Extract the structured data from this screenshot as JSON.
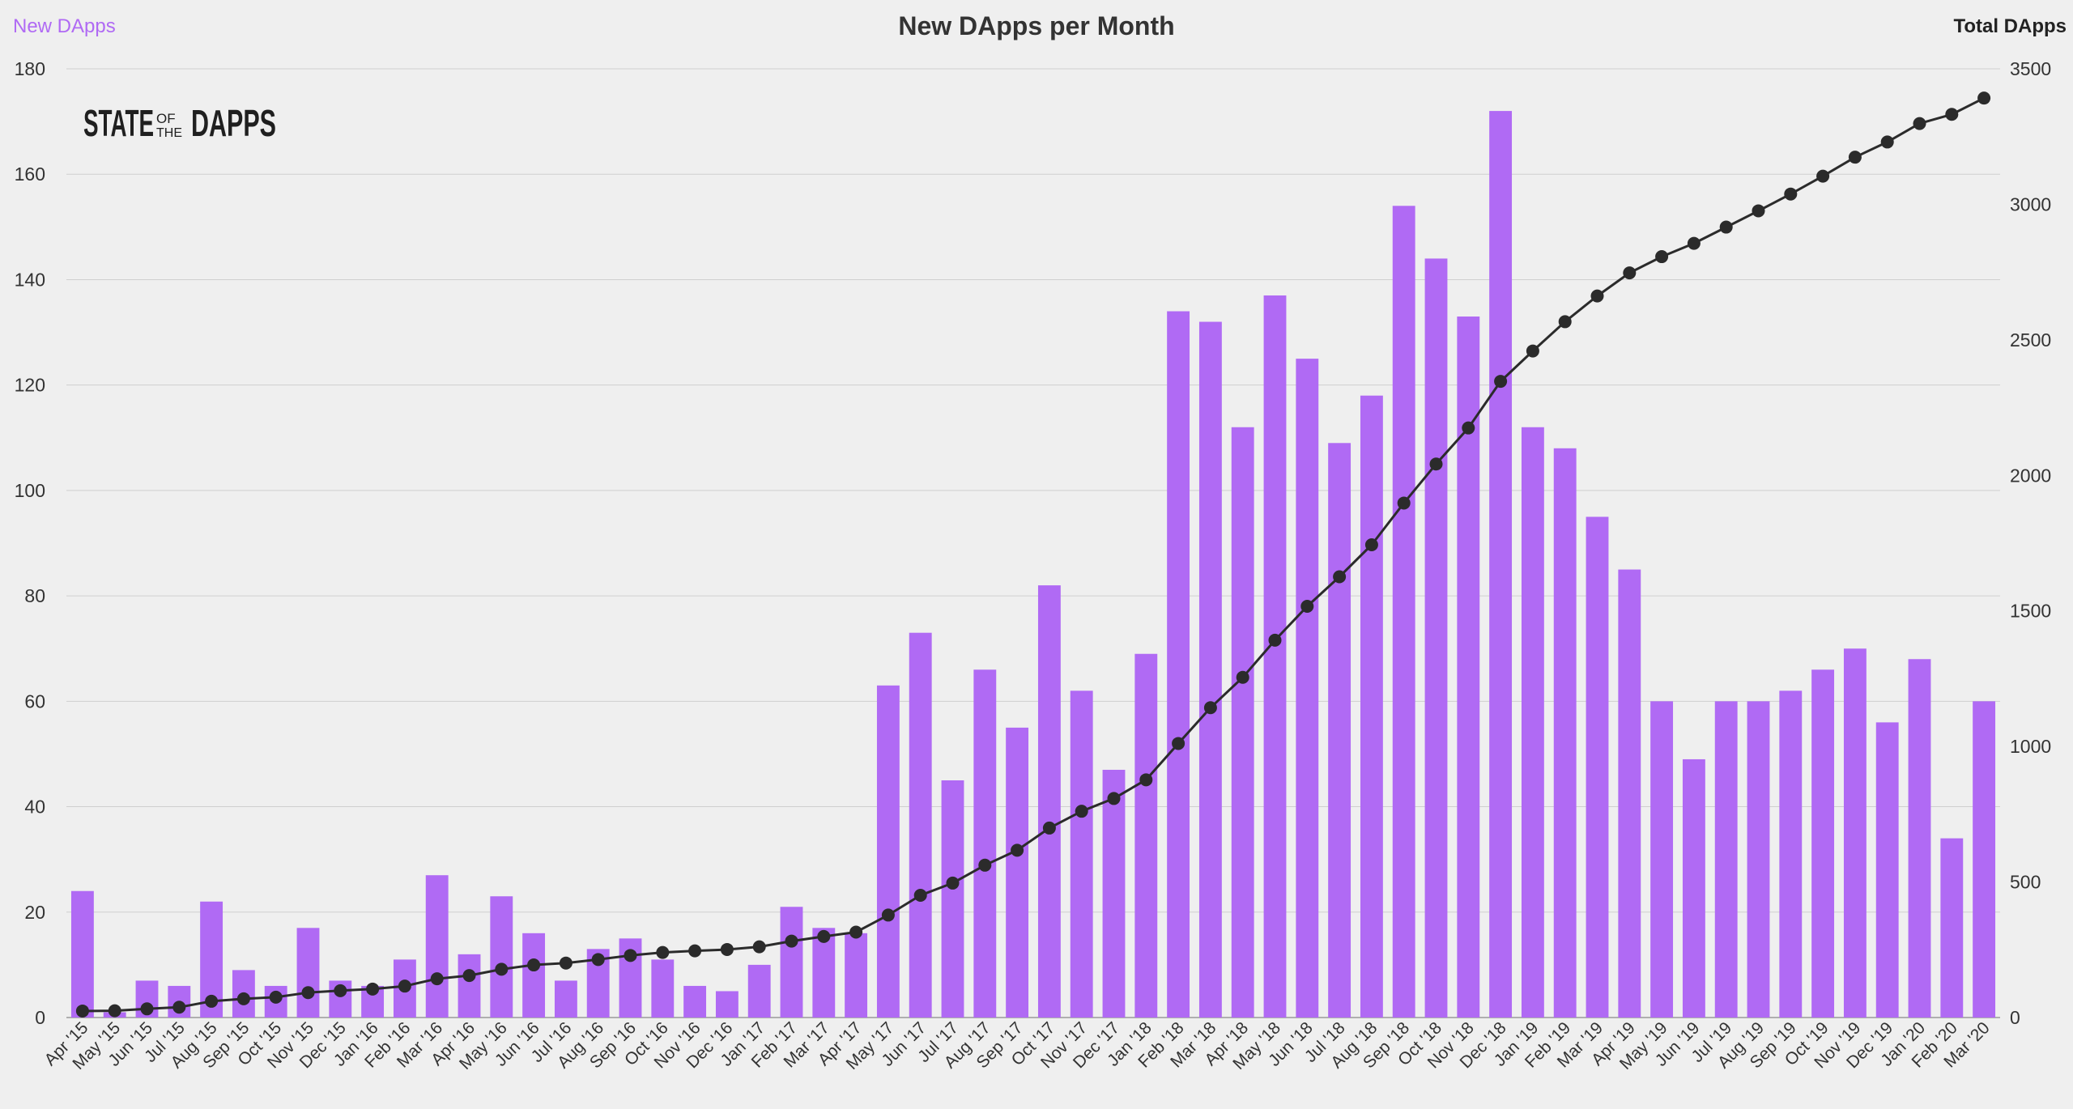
{
  "chart_data": {
    "type": "bar+line",
    "title": "New DApps per Month",
    "left_axis_label": "New DApps",
    "right_axis_label": "Total DApps",
    "logo": "STATE OF THE DAPPS",
    "categories": [
      "Apr '15",
      "May '15",
      "Jun '15",
      "Jul '15",
      "Aug '15",
      "Sep '15",
      "Oct '15",
      "Nov '15",
      "Dec '15",
      "Jan '16",
      "Feb '16",
      "Mar '16",
      "Apr '16",
      "May '16",
      "Jun '16",
      "Jul '16",
      "Aug '16",
      "Sep '16",
      "Oct '16",
      "Nov '16",
      "Dec '16",
      "Jan '17",
      "Feb '17",
      "Mar '17",
      "Apr '17",
      "May '17",
      "Jun '17",
      "Jul '17",
      "Aug '17",
      "Sep '17",
      "Oct '17",
      "Nov '17",
      "Dec '17",
      "Jan '18",
      "Feb '18",
      "Mar '18",
      "Apr '18",
      "May '18",
      "Jun '18",
      "Jul '18",
      "Aug '18",
      "Sep '18",
      "Oct '18",
      "Nov '18",
      "Dec '18",
      "Jan '19",
      "Feb '19",
      "Mar '19",
      "Apr '19",
      "May '19",
      "Jun '19",
      "Jul '19",
      "Aug '19",
      "Sep '19",
      "Oct '19",
      "Nov '19",
      "Dec '19",
      "Jan '20",
      "Feb '20",
      "Mar '20"
    ],
    "series": [
      {
        "name": "New DApps",
        "type": "bar",
        "axis": "left",
        "color": "#b06af4",
        "values": [
          24,
          1,
          7,
          6,
          22,
          9,
          6,
          17,
          7,
          6,
          11,
          27,
          12,
          23,
          16,
          7,
          13,
          15,
          11,
          6,
          5,
          10,
          21,
          17,
          16,
          63,
          73,
          45,
          66,
          55,
          82,
          62,
          47,
          69,
          134,
          132,
          112,
          137,
          125,
          109,
          118,
          154,
          144,
          133,
          172,
          112,
          108,
          95,
          85,
          60,
          49,
          60,
          60,
          62,
          66,
          70,
          56,
          68,
          34,
          60
        ]
      },
      {
        "name": "Total DApps",
        "type": "line",
        "axis": "right",
        "color": "#2b2b2b",
        "values": [
          24,
          25,
          32,
          38,
          60,
          69,
          75,
          92,
          99,
          105,
          116,
          143,
          155,
          178,
          194,
          201,
          214,
          229,
          240,
          246,
          251,
          261,
          282,
          299,
          315,
          378,
          451,
          496,
          562,
          617,
          699,
          761,
          808,
          877,
          1011,
          1143,
          1255,
          1392,
          1517,
          1626,
          1744,
          1898,
          2042,
          2175,
          2347,
          2459,
          2567,
          2662,
          2747,
          2807,
          2856,
          2916,
          2976,
          3038,
          3104,
          3174,
          3230,
          3298,
          3332,
          3392
        ]
      }
    ],
    "y_left": {
      "min": 0,
      "max": 180,
      "ticks": [
        0,
        20,
        40,
        60,
        80,
        100,
        120,
        140,
        160,
        180
      ]
    },
    "y_right": {
      "min": 0,
      "max": 3500,
      "ticks": [
        0,
        500,
        1000,
        1500,
        2000,
        2500,
        3000,
        3500
      ]
    },
    "grid": true,
    "legend": "axis titles at top-left and top-right"
  }
}
